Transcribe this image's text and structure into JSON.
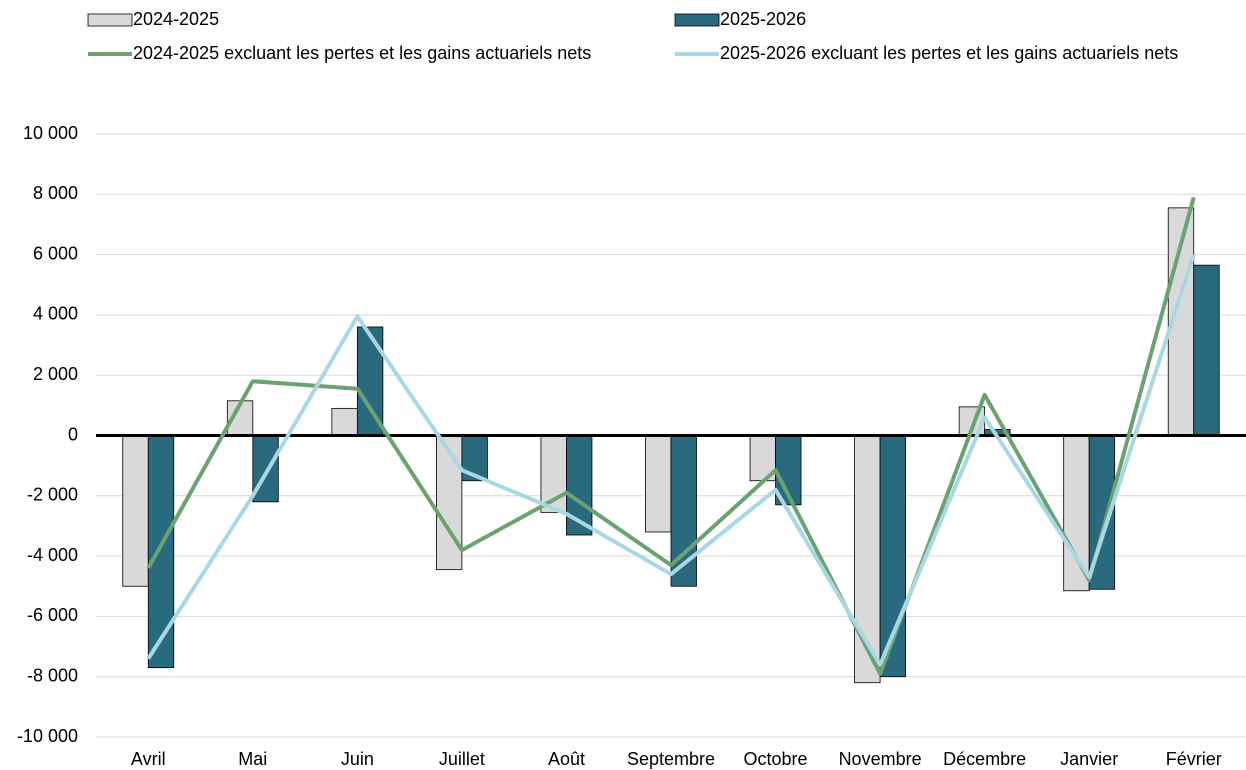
{
  "chart_data": {
    "type": "bar",
    "categories": [
      "Avril",
      "Mai",
      "Juin",
      "Juillet",
      "Août",
      "Septembre",
      "Octobre",
      "Novembre",
      "Décembre",
      "Janvier",
      "Février"
    ],
    "series": [
      {
        "name": "2024-2025",
        "type": "bar",
        "color": "#d9d9d9",
        "values": [
          -5000,
          1150,
          900,
          -4450,
          -2550,
          -3200,
          -1500,
          -8200,
          950,
          -5150,
          7550
        ]
      },
      {
        "name": "2025-2026",
        "type": "bar",
        "color": "#2a6a7e",
        "values": [
          -7700,
          -2200,
          3600,
          -1500,
          -3300,
          -5000,
          -2300,
          -8000,
          200,
          -5100,
          5650
        ]
      },
      {
        "name": "2024-2025 excluant les pertes et les gains actuariels nets",
        "type": "line",
        "color": "#6aa272",
        "values": [
          -4400,
          1800,
          1550,
          -3800,
          -1900,
          -4300,
          -1150,
          -7900,
          1350,
          -4800,
          7900
        ]
      },
      {
        "name": "2025-2026 excluant les pertes et les gains actuariels nets",
        "type": "line",
        "color": "#a8d8e4",
        "values": [
          -7400,
          -2000,
          3950,
          -1150,
          -2600,
          -4600,
          -1800,
          -7600,
          600,
          -4700,
          6000
        ]
      }
    ],
    "ylim": [
      -10000,
      10000
    ],
    "yticks": [
      {
        "value": -10000,
        "label": "-10 000"
      },
      {
        "value": -8000,
        "label": "-8 000"
      },
      {
        "value": -6000,
        "label": "-6 000"
      },
      {
        "value": -4000,
        "label": "-4 000"
      },
      {
        "value": -2000,
        "label": "-2 000"
      },
      0,
      {
        "value": 2000,
        "label": "2 000"
      },
      {
        "value": 4000,
        "label": "4 000"
      },
      {
        "value": 6000,
        "label": "6 000"
      },
      {
        "value": 8000,
        "label": "8 000"
      },
      {
        "value": 10000,
        "label": "10 000"
      }
    ],
    "grid": true
  }
}
